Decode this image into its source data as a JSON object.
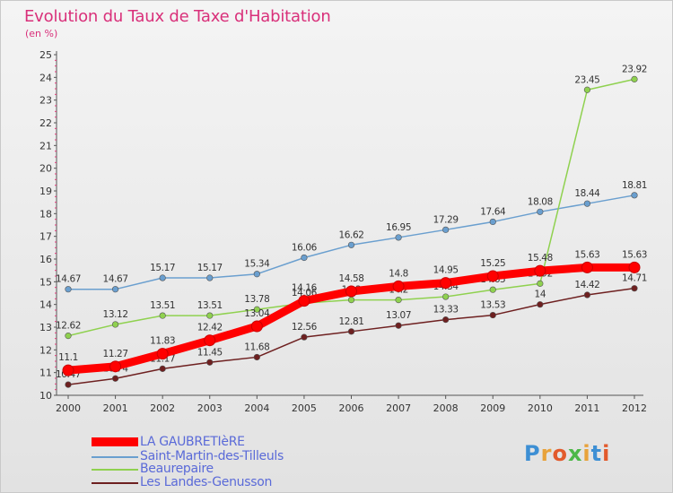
{
  "header": {
    "title": "Evolution du Taux de Taxe d'Habitation",
    "unit": "(en %)"
  },
  "logo": {
    "text": "Proxiti",
    "colors": [
      "#3d8fd4",
      "#e8a23a",
      "#e25a2c",
      "#4cb848",
      "#e8a23a",
      "#3d8fd4",
      "#e25a2c"
    ]
  },
  "chart_data": {
    "type": "line",
    "x": [
      "2000",
      "2001",
      "2002",
      "2003",
      "2004",
      "2005",
      "2006",
      "2007",
      "2008",
      "2009",
      "2010",
      "2011",
      "2012"
    ],
    "ylim": [
      10,
      25
    ],
    "yticks": [
      10,
      11,
      12,
      13,
      14,
      15,
      16,
      17,
      18,
      19,
      20,
      21,
      22,
      23,
      24,
      25
    ],
    "title": "Evolution du Taux de Taxe d'Habitation",
    "ylabel": "(en %)",
    "grid": false,
    "legend_position": "bottom-left",
    "series": [
      {
        "name": "Saint-Martin-des-Tilleuls",
        "color": "#6a9fcf",
        "values": [
          14.67,
          14.67,
          15.17,
          15.17,
          15.34,
          16.06,
          16.62,
          16.95,
          17.29,
          17.64,
          18.08,
          18.44,
          18.81
        ],
        "labels": [
          "14.67",
          "14.67",
          "15.17",
          "15.17",
          "15.34",
          "16.06",
          "16.62",
          "16.95",
          "17.29",
          "17.64",
          "18.08",
          "18.44",
          "18.81"
        ]
      },
      {
        "name": "Beaurepaire",
        "color": "#8fd14f",
        "values": [
          12.62,
          13.12,
          13.51,
          13.51,
          13.78,
          14.06,
          14.2,
          14.2,
          14.34,
          14.65,
          14.92,
          23.45,
          23.92
        ],
        "labels": [
          "12.62",
          "13.12",
          "13.51",
          "13.51",
          "13.78",
          "14.06",
          "14.2",
          "14.2",
          "14.34",
          "14.65",
          "14.92",
          "23.45",
          "23.92"
        ]
      },
      {
        "name": "Les Landes-Genusson",
        "color": "#6e2020",
        "values": [
          10.47,
          10.74,
          11.17,
          11.45,
          11.68,
          12.56,
          12.81,
          13.07,
          13.33,
          13.53,
          14,
          14.42,
          14.71
        ],
        "labels": [
          "10.47",
          "10.74",
          "11.17",
          "11.45",
          "11.68",
          "12.56",
          "12.81",
          "13.07",
          "13.33",
          "13.53",
          "14",
          "14.42",
          "14.71"
        ]
      },
      {
        "name": "LA GAUBRETIèRE",
        "color": "#ff0000",
        "values": [
          11.1,
          11.27,
          11.83,
          12.42,
          13.04,
          14.16,
          14.58,
          14.8,
          14.95,
          15.25,
          15.48,
          15.63,
          15.63
        ],
        "labels": [
          "11.1",
          "11.27",
          "11.83",
          "12.42",
          "13.04",
          "14.16",
          "14.58",
          "14.8",
          "14.95",
          "15.25",
          "15.48",
          "15.63",
          "15.63"
        ]
      }
    ],
    "legend": [
      {
        "name": "LA GAUBRETIèRE",
        "color": "#ff0000",
        "thick": true
      },
      {
        "name": "Saint-Martin-des-Tilleuls",
        "color": "#6a9fcf",
        "thick": false
      },
      {
        "name": "Beaurepaire",
        "color": "#8fd14f",
        "thick": false
      },
      {
        "name": "Les Landes-Genusson",
        "color": "#6e2020",
        "thick": false
      }
    ]
  }
}
